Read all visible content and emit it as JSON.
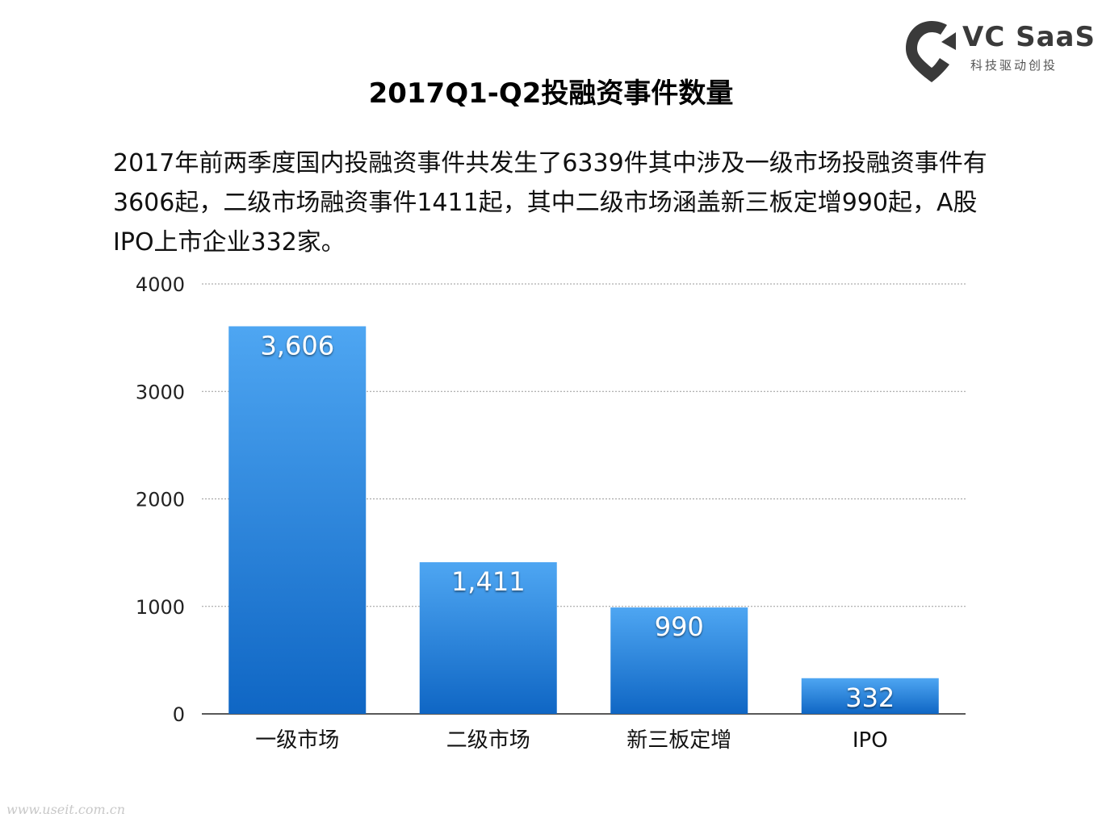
{
  "logo": {
    "brand": "VC SaaS",
    "tagline": "科技驱动创投",
    "color": "#3a3a3a"
  },
  "watermark": "www.useit.com.cn",
  "description": "2017年前两季度国内投融资事件共发生了6339件其中涉及一级市场投融资事件有3606起，二级市场融资事件1411起，其中二级市场涵盖新三板定增990起，A股IPO上市企业332家。",
  "chart_data": {
    "type": "bar",
    "title": "2017Q1-Q2投融资事件数量",
    "categories": [
      "一级市场",
      "二级市场",
      "新三板定增",
      "IPO"
    ],
    "values": [
      3606,
      1411,
      990,
      332
    ],
    "value_labels": [
      "3,606",
      "1,411",
      "990",
      "332"
    ],
    "yticks": [
      "0",
      "1000",
      "2000",
      "3000",
      "4000"
    ],
    "ylim": [
      0,
      4000
    ],
    "xlabel": "",
    "ylabel": "",
    "grid": true,
    "bar_color_top": "#4ea6f2",
    "bar_color_bottom": "#0f66c4"
  }
}
